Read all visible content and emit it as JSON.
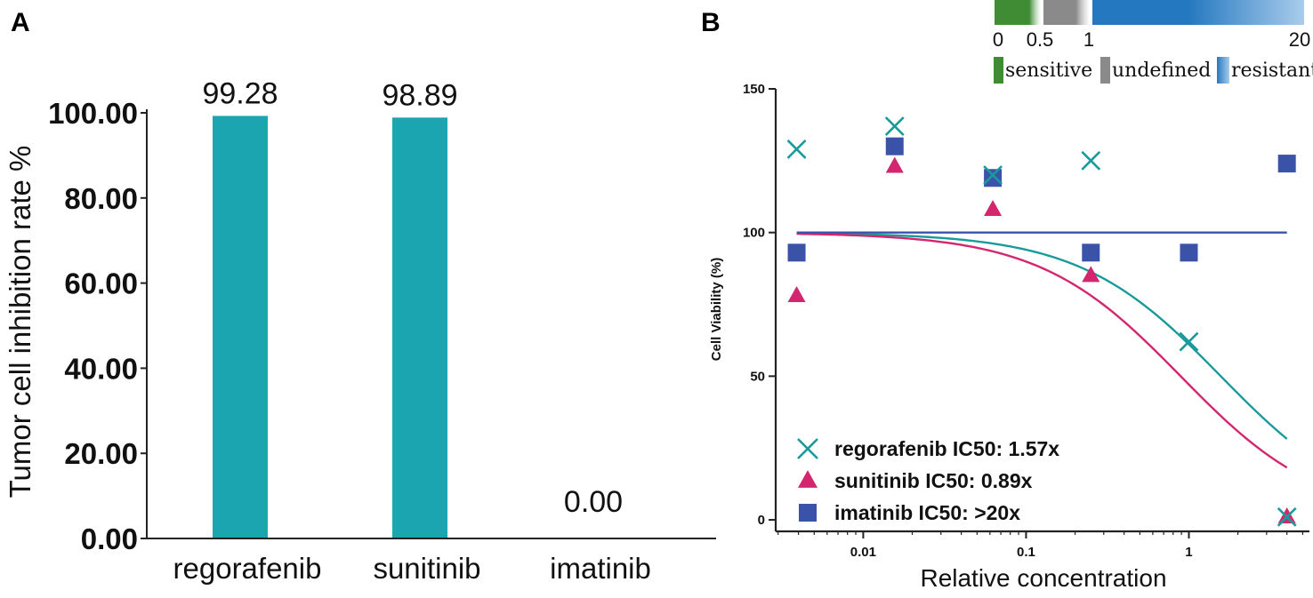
{
  "panels": {
    "a_label": "A",
    "b_label": "B"
  },
  "colors": {
    "bar": "#1AA5B0",
    "regorafenib": "#1A9A9A",
    "sunitinib": "#D3266F",
    "imatinib": "#3A53A8",
    "sensitive": "#3F8C35",
    "undefined": "#8A8A8A",
    "resistant": "#2478BF",
    "resistant_light": "#A9CCEC",
    "axis": "#222222"
  },
  "chart_data": [
    {
      "type": "bar",
      "title": "",
      "xlabel": "",
      "ylabel": "Tumor cell inhibition rate %",
      "categories": [
        "regorafenib",
        "sunitinib",
        "imatinib"
      ],
      "values": [
        99.28,
        98.89,
        0.0
      ],
      "value_labels": [
        "99.28",
        "98.89",
        "0.00"
      ],
      "ylim": [
        0,
        100
      ],
      "yticks": [
        0,
        20,
        40,
        60,
        80,
        100
      ],
      "ytick_labels": [
        "0.00",
        "20.00",
        "40.00",
        "60.00",
        "80.00",
        "100.00"
      ],
      "grid": false
    },
    {
      "type": "scatter",
      "title": "",
      "xlabel": "Relative concentration",
      "ylabel": "Cell Viability (%)",
      "xscale": "log",
      "xlim": [
        0.0029,
        5.5
      ],
      "ylim": [
        -4,
        150
      ],
      "xticks": [
        0.01,
        0.1,
        1
      ],
      "xtick_labels": [
        "0.01",
        "0.1",
        "1"
      ],
      "yticks": [
        0,
        50,
        100,
        150
      ],
      "ytick_labels": [
        "0",
        "50",
        "100",
        "150"
      ],
      "grid": false,
      "legend_position": "bottom-left",
      "series": [
        {
          "name": "regorafenib",
          "legend_label": "regorafenib IC50: 1.57x",
          "marker": "x",
          "x": [
            0.0039,
            0.0156,
            0.0625,
            0.25,
            1,
            4
          ],
          "y": [
            129,
            137,
            120,
            125,
            62,
            1
          ],
          "fit": {
            "top": 100,
            "ic50": 1.57,
            "hill": 1.0,
            "x_start": 0.0039,
            "x_end": 4
          }
        },
        {
          "name": "sunitinib",
          "legend_label": "sunitinib IC50: 0.89x",
          "marker": "triangle",
          "x": [
            0.0039,
            0.0156,
            0.0625,
            0.25,
            4
          ],
          "y": [
            78,
            123,
            108,
            85,
            1
          ],
          "fit": {
            "top": 100,
            "ic50": 0.89,
            "hill": 1.0,
            "x_start": 0.0039,
            "x_end": 4
          }
        },
        {
          "name": "imatinib",
          "legend_label": "imatinib IC50: >20x",
          "marker": "square",
          "x": [
            0.0039,
            0.0156,
            0.0625,
            0.25,
            1,
            4
          ],
          "y": [
            93,
            130,
            119,
            93,
            93,
            124
          ],
          "fit": {
            "top": 100,
            "ic50": null,
            "hill": 0,
            "x_start": 0.0039,
            "x_end": 4
          }
        }
      ],
      "ic50_scale": {
        "range": [
          0,
          20
        ],
        "tick_labels": [
          "0",
          "0.5",
          "1",
          "20"
        ],
        "categories": [
          {
            "label": "sensitive",
            "from": 0,
            "to": 0.5
          },
          {
            "label": "undefined",
            "from": 0.5,
            "to": 1
          },
          {
            "label": "resistant",
            "from": 1,
            "to": 20
          }
        ]
      }
    }
  ]
}
